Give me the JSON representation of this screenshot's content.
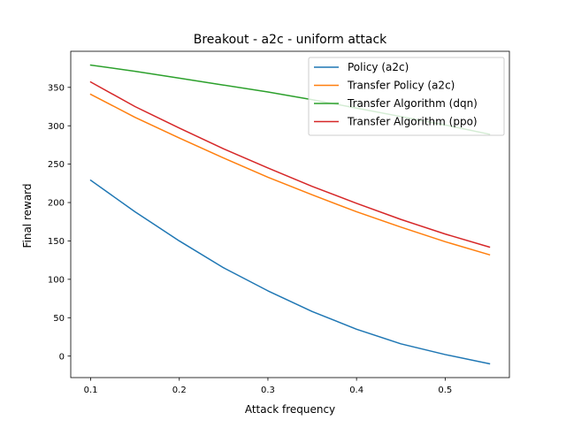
{
  "chart_data": {
    "type": "line",
    "title": "Breakout - a2c - uniform attack",
    "xlabel": "Attack frequency",
    "ylabel": "Final reward",
    "xlim": [
      0.0775,
      0.5725
    ],
    "ylim": [
      -28.0,
      397.0
    ],
    "xticks": [
      0.1,
      0.2,
      0.3,
      0.4,
      0.5
    ],
    "xtick_labels": [
      "0.1",
      "0.2",
      "0.3",
      "0.4",
      "0.5"
    ],
    "yticks": [
      0,
      50,
      100,
      150,
      200,
      250,
      300,
      350
    ],
    "ytick_labels": [
      "0",
      "50",
      "100",
      "150",
      "200",
      "250",
      "300",
      "350"
    ],
    "grid": false,
    "legend_position": "top-right",
    "x": [
      0.1,
      0.15,
      0.2,
      0.25,
      0.3,
      0.35,
      0.4,
      0.45,
      0.5,
      0.55
    ],
    "series": [
      {
        "name": "Policy (a2c)",
        "color": "#1f77b4",
        "values": [
          229,
          188,
          150,
          115,
          85,
          58,
          35,
          16,
          2,
          -10
        ]
      },
      {
        "name": "Transfer Policy (a2c)",
        "color": "#ff7f0e",
        "values": [
          341,
          311,
          284,
          258,
          233,
          210,
          188,
          168,
          149,
          132
        ]
      },
      {
        "name": "Transfer Algorithm (dqn)",
        "color": "#2ca02c",
        "values": [
          379,
          371,
          362,
          353,
          344,
          334,
          323,
          312,
          301,
          289
        ]
      },
      {
        "name": "Transfer Algorithm (ppo)",
        "color": "#d62728",
        "values": [
          357,
          325,
          297,
          270,
          245,
          221,
          199,
          178,
          159,
          142
        ]
      }
    ]
  }
}
